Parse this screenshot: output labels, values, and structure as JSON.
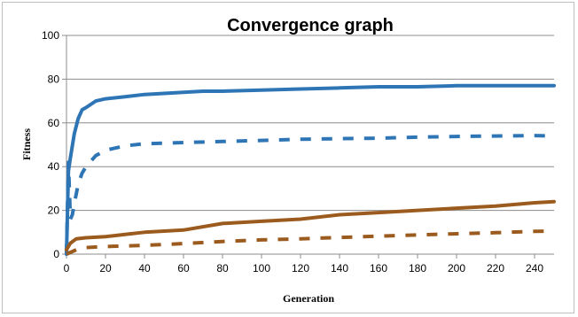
{
  "chart_data": {
    "type": "line",
    "title": "Convergence graph",
    "xlabel": "Generation",
    "ylabel": "Fitness",
    "xlim": [
      0,
      250
    ],
    "ylim": [
      0,
      100
    ],
    "xticks": [
      0,
      20,
      40,
      60,
      80,
      100,
      120,
      140,
      160,
      180,
      200,
      220,
      240
    ],
    "yticks": [
      0,
      20,
      40,
      60,
      80,
      100
    ],
    "grid": "horizontal",
    "legend": "none",
    "series": [
      {
        "color": "#2E75B6",
        "style": "solid",
        "x": [
          0,
          1,
          2,
          4,
          6,
          8,
          10,
          15,
          20,
          30,
          40,
          50,
          60,
          70,
          80,
          100,
          120,
          140,
          160,
          180,
          200,
          220,
          240,
          250
        ],
        "y": [
          0,
          38,
          44,
          55,
          62,
          66,
          67,
          70,
          71,
          72,
          73,
          73.5,
          74,
          74.5,
          74.5,
          75,
          75.5,
          76,
          76.5,
          76.5,
          77,
          77,
          77,
          77
        ]
      },
      {
        "color": "#2E75B6",
        "style": "dashed",
        "x": [
          0,
          1,
          2,
          3,
          4,
          6,
          8,
          10,
          15,
          20,
          30,
          40,
          60,
          80,
          100,
          120,
          140,
          160,
          180,
          200,
          220,
          240,
          250
        ],
        "y": [
          0,
          42,
          16,
          18,
          23,
          32,
          37,
          40,
          45,
          47.5,
          49.5,
          50.5,
          51,
          51.5,
          52,
          52.5,
          52.8,
          53,
          53.5,
          53.8,
          54,
          54.2,
          54
        ]
      },
      {
        "color": "#9C5B1E",
        "style": "solid",
        "x": [
          0,
          2,
          5,
          10,
          20,
          30,
          40,
          60,
          80,
          100,
          120,
          140,
          160,
          180,
          200,
          220,
          240,
          250
        ],
        "y": [
          2,
          5,
          7,
          7.5,
          8,
          9,
          10,
          11,
          14,
          15,
          16,
          18,
          19,
          20,
          21,
          22,
          23.5,
          24
        ]
      },
      {
        "color": "#9C5B1E",
        "style": "dashed",
        "x": [
          0,
          5,
          10,
          20,
          40,
          60,
          80,
          100,
          120,
          140,
          160,
          180,
          200,
          220,
          240,
          250
        ],
        "y": [
          0,
          2,
          3,
          3.5,
          4,
          4.8,
          5.8,
          6.5,
          7,
          7.6,
          8.2,
          8.8,
          9.3,
          9.8,
          10.4,
          10.6
        ]
      }
    ]
  }
}
